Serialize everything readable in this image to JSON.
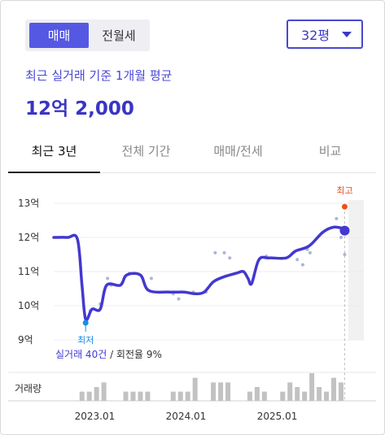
{
  "segment": {
    "items": [
      "매매",
      "전월세"
    ],
    "selected_index": 0
  },
  "area_select": {
    "value": "32평"
  },
  "summary": {
    "label": "최근 실거래 기준 1개월 평균",
    "value": "12억 2,000"
  },
  "tabs": [
    {
      "label": "최근 3년",
      "active": true
    },
    {
      "label": "전체 기간",
      "active": false
    },
    {
      "label": "매매/전세",
      "active": false
    },
    {
      "label": "비교",
      "active": false
    }
  ],
  "chart_data": {
    "type": "line",
    "y_ticks": [
      "13억",
      "12억",
      "11억",
      "10억",
      "9억"
    ],
    "y_tick_values": [
      13,
      12,
      11,
      10,
      9
    ],
    "ylim": [
      9,
      13
    ],
    "x_ticks": [
      "2023.01",
      "2024.01",
      "2025.01"
    ],
    "x_tick_values": [
      2023.0,
      2024.0,
      2025.0
    ],
    "xlim": [
      2022.55,
      2025.95
    ],
    "line_color": "#4338d0",
    "series": [
      {
        "values": [
          [
            2022.55,
            12.0
          ],
          [
            2022.7,
            12.0
          ],
          [
            2022.81,
            11.95
          ],
          [
            2022.86,
            10.6
          ],
          [
            2022.9,
            9.6
          ],
          [
            2022.97,
            9.9
          ],
          [
            2023.06,
            9.9
          ],
          [
            2023.13,
            10.6
          ],
          [
            2023.28,
            10.6
          ],
          [
            2023.35,
            10.9
          ],
          [
            2023.5,
            10.9
          ],
          [
            2023.59,
            10.45
          ],
          [
            2023.82,
            10.4
          ],
          [
            2023.98,
            10.4
          ],
          [
            2024.1,
            10.35
          ],
          [
            2024.2,
            10.4
          ],
          [
            2024.3,
            10.7
          ],
          [
            2024.42,
            10.85
          ],
          [
            2024.55,
            10.95
          ],
          [
            2024.63,
            11.0
          ],
          [
            2024.68,
            10.8
          ],
          [
            2024.72,
            10.65
          ],
          [
            2024.8,
            11.35
          ],
          [
            2024.91,
            11.4
          ],
          [
            2025.1,
            11.4
          ],
          [
            2025.2,
            11.6
          ],
          [
            2025.35,
            11.75
          ],
          [
            2025.5,
            12.15
          ],
          [
            2025.62,
            12.3
          ],
          [
            2025.74,
            12.25
          ]
        ]
      }
    ],
    "scatter_points": [
      [
        2022.95,
        9.85
      ],
      [
        2023.06,
        10.05
      ],
      [
        2023.14,
        10.8
      ],
      [
        2023.18,
        10.6
      ],
      [
        2023.38,
        10.95
      ],
      [
        2023.62,
        10.8
      ],
      [
        2023.86,
        10.35
      ],
      [
        2023.92,
        10.2
      ],
      [
        2024.08,
        10.4
      ],
      [
        2024.22,
        10.4
      ],
      [
        2024.32,
        11.55
      ],
      [
        2024.42,
        11.55
      ],
      [
        2024.48,
        11.4
      ],
      [
        2024.88,
        11.45
      ],
      [
        2025.18,
        11.55
      ],
      [
        2025.22,
        11.35
      ],
      [
        2025.28,
        11.2
      ],
      [
        2025.33,
        11.65
      ],
      [
        2025.36,
        11.55
      ],
      [
        2025.65,
        12.55
      ],
      [
        2025.7,
        12.0
      ],
      [
        2025.74,
        11.5
      ]
    ],
    "annotations": {
      "high": {
        "label": "최고",
        "x": 2025.74,
        "y": 12.9,
        "color": "#f04e1e"
      },
      "low": {
        "label": "최저",
        "x": 2022.9,
        "y": 9.5,
        "color": "#1a8ee6"
      },
      "current": {
        "x": 2025.74,
        "y": 12.2
      }
    },
    "volume_label": "거래량",
    "volume": [
      [
        2022.86,
        2
      ],
      [
        2022.94,
        2
      ],
      [
        2023.02,
        3
      ],
      [
        2023.1,
        4
      ],
      [
        2023.34,
        2
      ],
      [
        2023.42,
        2
      ],
      [
        2023.5,
        2
      ],
      [
        2023.58,
        2
      ],
      [
        2023.86,
        2
      ],
      [
        2023.94,
        2
      ],
      [
        2024.02,
        2
      ],
      [
        2024.1,
        5
      ],
      [
        2024.3,
        4
      ],
      [
        2024.38,
        4
      ],
      [
        2024.46,
        4
      ],
      [
        2024.7,
        2
      ],
      [
        2024.78,
        3
      ],
      [
        2024.86,
        2
      ],
      [
        2025.06,
        2
      ],
      [
        2025.14,
        4
      ],
      [
        2025.22,
        3
      ],
      [
        2025.3,
        2
      ],
      [
        2025.38,
        6
      ],
      [
        2025.46,
        3
      ],
      [
        2025.54,
        2
      ],
      [
        2025.62,
        5
      ],
      [
        2025.7,
        4
      ]
    ]
  },
  "transactions_note": {
    "prefix": "실거래 40건",
    "suffix": " / 회전율 9%"
  }
}
